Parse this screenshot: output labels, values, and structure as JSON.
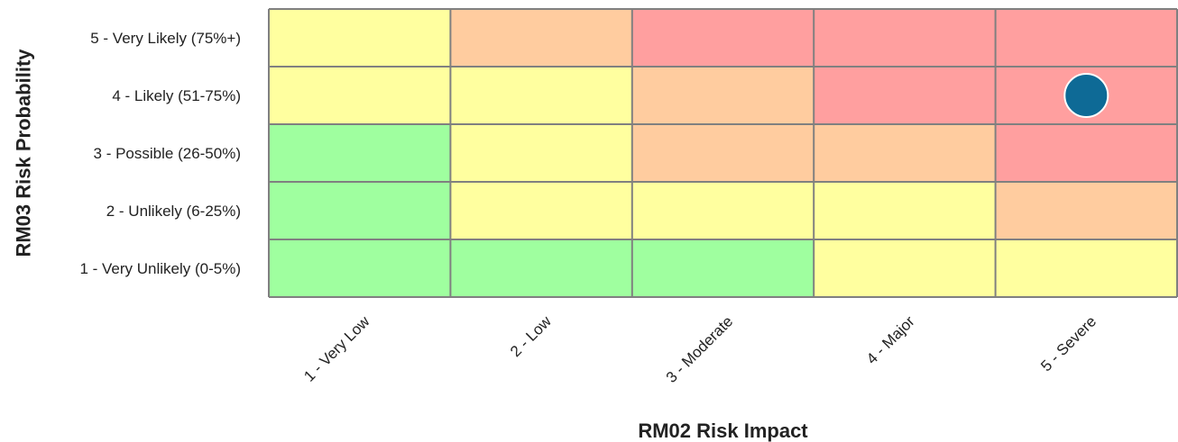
{
  "chart_data": {
    "type": "heatmap",
    "title": "",
    "xlabel": "RM02 Risk Impact",
    "ylabel": "RM03 Risk Probability",
    "x_categories": [
      "1 - Very Low",
      "2 - Low",
      "3 - Moderate",
      "4 - Major",
      "5 - Severe"
    ],
    "y_categories": [
      "1 - Very Unlikely (0-5%)",
      "2 - Unlikely (6-25%)",
      "3 - Possible (26-50%)",
      "4 - Likely (51-75%)",
      "5 - Very Likely (75%+)"
    ],
    "risk_levels": {
      "low": "#9fff9f",
      "medium": "#ffff9f",
      "high": "#ffcc9f",
      "critical": "#ff9f9f"
    },
    "cells": [
      [
        "low",
        "low",
        "low",
        "medium",
        "medium"
      ],
      [
        "low",
        "medium",
        "medium",
        "medium",
        "high"
      ],
      [
        "low",
        "medium",
        "high",
        "high",
        "critical"
      ],
      [
        "medium",
        "medium",
        "high",
        "critical",
        "critical"
      ],
      [
        "medium",
        "high",
        "critical",
        "critical",
        "critical"
      ]
    ],
    "points": [
      {
        "x": "5 - Severe",
        "y": "4 - Likely (51-75%)"
      }
    ],
    "grid_color": "#808080",
    "point_color": "#0e6a96"
  }
}
